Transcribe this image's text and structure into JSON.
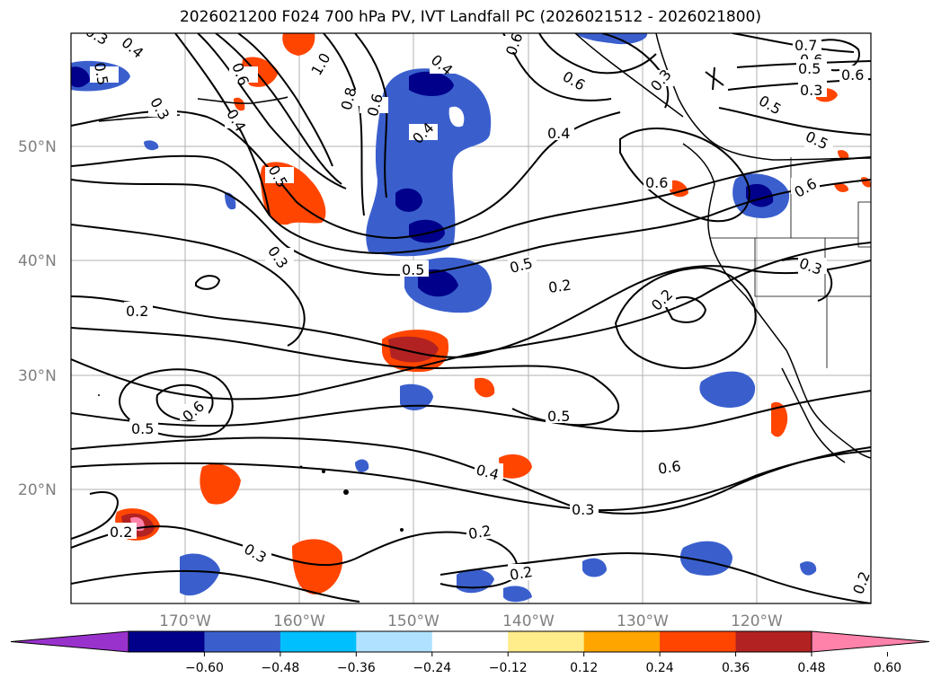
{
  "title": "2026021200 F024 700 hPa PV, IVT Landfall PC (2026021512 - 2026021800)",
  "lat_labels": [
    "50°N",
    "40°N",
    "30°N",
    "20°N"
  ],
  "lon_labels": [
    "170°W",
    "160°W",
    "150°W",
    "140°W",
    "130°W",
    "120°W"
  ],
  "colorbar": {
    "tick_labels": [
      "−0.60",
      "−0.48",
      "−0.36",
      "−0.24",
      "−0.12",
      "0.12",
      "0.24",
      "0.36",
      "0.48",
      "0.60"
    ],
    "colors": [
      "#9932cc",
      "#00008b",
      "#3a5fcd",
      "#00bfff",
      "#b0e2ff",
      "#ffffff",
      "#ffec8b",
      "#ffa500",
      "#ff4500",
      "#b22222",
      "#ff82ab"
    ]
  },
  "contour_labels": [
    "0.3",
    "0.4",
    "0.5",
    "0.6",
    "0.3",
    "0.4",
    "0.6",
    "0.8",
    "1.0",
    "0.6",
    "0.4",
    "0.6",
    "0.5",
    "0.6",
    "0.3",
    "0.7",
    "0.6",
    "0.5",
    "0.4",
    "0.3",
    "0.4",
    "0.6",
    "0.5",
    "0.6",
    "0.5",
    "0.3",
    "0.3",
    "0.2",
    "0.5",
    "0.2",
    "0.5",
    "0.2",
    "0.6",
    "0.5",
    "0.5",
    "0.4",
    "0.6",
    "0.3",
    "0.2",
    "0.3",
    "0.2",
    "0.2",
    "0.2"
  ]
}
